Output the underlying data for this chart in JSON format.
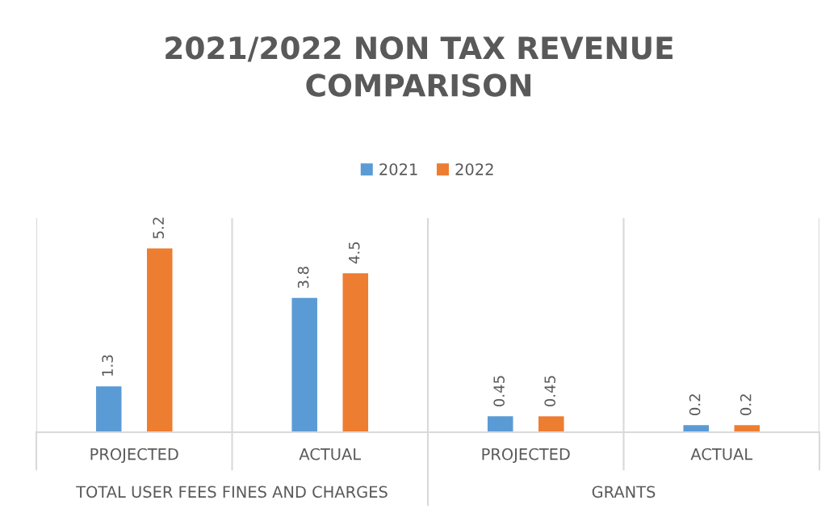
{
  "chart_data": {
    "type": "bar",
    "title": "2021/2022 NON TAX REVENUE\nCOMPARISON",
    "categories": [
      "PROJECTED",
      "ACTUAL",
      "PROJECTED",
      "ACTUAL"
    ],
    "series": [
      {
        "name": "2021",
        "color": "#5b9bd5",
        "values": [
          1.3,
          3.8,
          0.45,
          0.2
        ]
      },
      {
        "name": "2022",
        "color": "#ed7d31",
        "values": [
          5.2,
          4.5,
          0.45,
          0.2
        ]
      }
    ],
    "annotations": [
      "TOTAL USER FEES FINES AND CHARGES",
      "GRANTS"
    ],
    "data_labels": true,
    "grid": "x",
    "legend": "top",
    "tick_labels": "x"
  }
}
